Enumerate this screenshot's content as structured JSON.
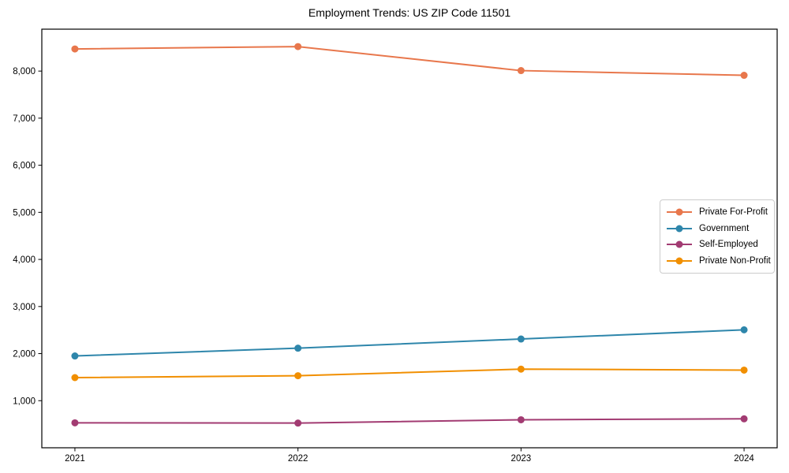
{
  "chart_data": {
    "type": "line",
    "title": "Employment Trends: US ZIP Code 11501",
    "categories": [
      "2021",
      "2022",
      "2023",
      "2024"
    ],
    "series": [
      {
        "name": "Private For-Profit",
        "color": "#E8774C",
        "values": [
          8470,
          8520,
          8010,
          7910
        ]
      },
      {
        "name": "Government",
        "color": "#2E86AB",
        "values": [
          1950,
          2115,
          2310,
          2505
        ]
      },
      {
        "name": "Self-Employed",
        "color": "#A23B72",
        "values": [
          530,
          525,
          595,
          615
        ]
      },
      {
        "name": "Private Non-Profit",
        "color": "#F18F01",
        "values": [
          1490,
          1530,
          1670,
          1650
        ]
      }
    ],
    "ylim": [
      0,
      8890
    ],
    "yticks": [
      1000,
      2000,
      3000,
      4000,
      5000,
      6000,
      7000,
      8000
    ],
    "ytick_labels": [
      "1,000",
      "2,000",
      "3,000",
      "4,000",
      "5,000",
      "6,000",
      "7,000",
      "8,000"
    ],
    "xlabel": "",
    "ylabel": "",
    "grid": false,
    "legend_position": "center-right",
    "axis_color": "#000000",
    "background_color": "#ffffff"
  }
}
